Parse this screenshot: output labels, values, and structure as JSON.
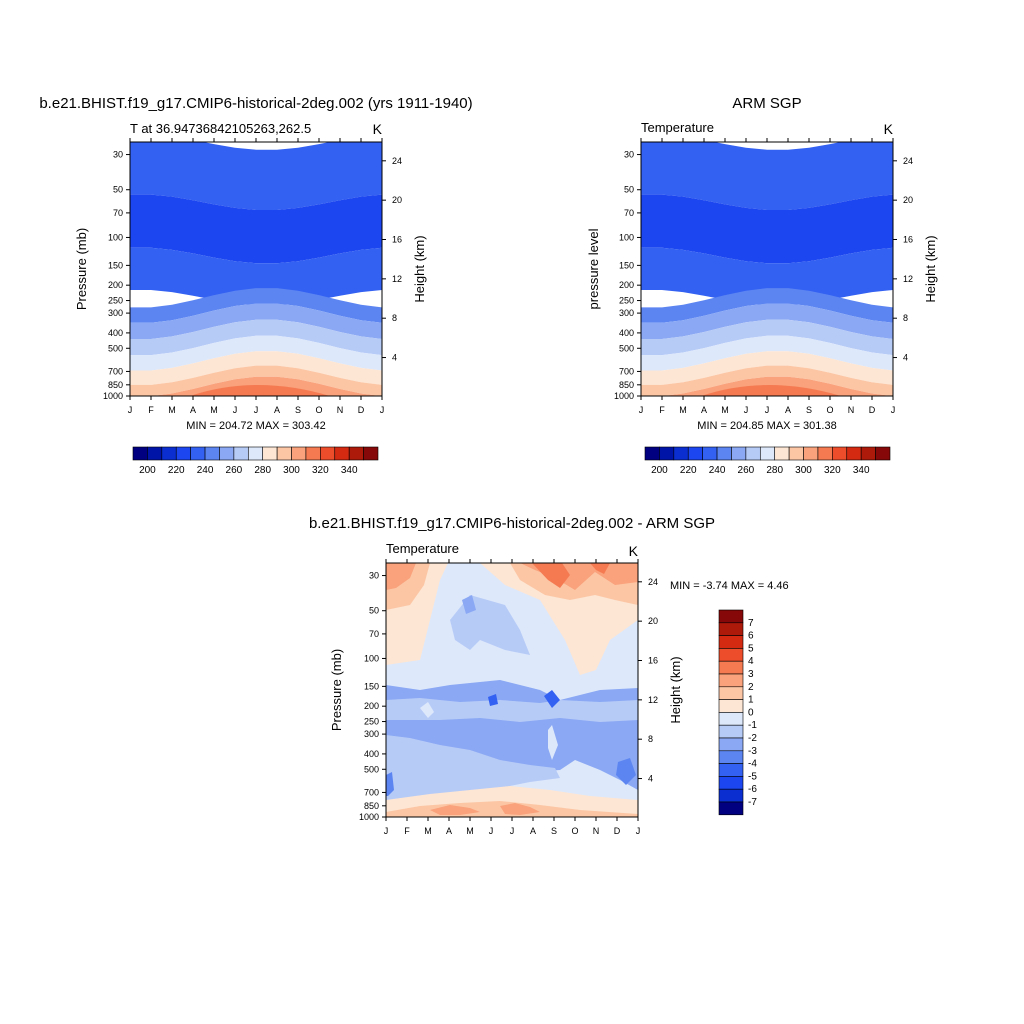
{
  "panels": {
    "p1": {
      "title": "b.e21.BHIST.f19_g17.CMIP6-historical-2deg.002 (yrs 1911-1940)",
      "left_label": "T at 36.94736842105263,262.5",
      "right_label": "K",
      "ylabel": "Pressure (mb)",
      "ylabel_right": "Height (km)",
      "minmax": "MIN = 204.72 MAX = 303.42"
    },
    "p2": {
      "title": "ARM SGP",
      "left_label": "Temperature",
      "right_label": "K",
      "ylabel": "pressure level",
      "ylabel_right": "Height (km)",
      "minmax": "MIN = 204.85 MAX = 301.38"
    },
    "p3": {
      "title": "b.e21.BHIST.f19_g17.CMIP6-historical-2deg.002 - ARM SGP",
      "left_label": "Temperature",
      "right_label": "K",
      "ylabel": "Pressure (mb)",
      "ylabel_right": "Height (km)",
      "minmax": "MIN =  -3.74 MAX =   4.46"
    }
  },
  "chart_data": [
    {
      "type": "heatmap",
      "title": "b.e21.BHIST.f19_g17.CMIP6-historical-2deg.002 (yrs 1911-1940)",
      "xlabel": "",
      "ylabel": "Pressure (mb)",
      "x_ticks": [
        "J",
        "F",
        "M",
        "A",
        "M",
        "J",
        "J",
        "A",
        "S",
        "O",
        "N",
        "D",
        "J"
      ],
      "y_ticks": [
        "30",
        "50",
        "70",
        "100",
        "150",
        "200",
        "250",
        "300",
        "400",
        "500",
        "700",
        "850",
        "1000"
      ],
      "y_ticks_right": [
        "24",
        "20",
        "16",
        "12",
        "8",
        "4"
      ],
      "ylim": [
        1000,
        25
      ],
      "y_scale": "log",
      "min": 204.72,
      "max": 303.42,
      "units": "K",
      "bands": [
        {
          "p_top": 25,
          "p_bot": 60,
          "level": 230
        },
        {
          "p_top": 60,
          "p_bot": 130,
          "level": 220
        },
        {
          "p_top": 130,
          "p_bot": 240,
          "level": 230
        },
        {
          "p_top": 240,
          "p_bot": 300,
          "level": 240
        },
        {
          "p_top": 300,
          "p_bot": 380,
          "level": 250
        },
        {
          "p_top": 380,
          "p_bot": 480,
          "level": 260
        },
        {
          "p_top": 480,
          "p_bot": 600,
          "level": 270
        },
        {
          "p_top": 600,
          "p_bot": 740,
          "level": 280
        },
        {
          "p_top": 740,
          "p_bot": 870,
          "level": 290
        },
        {
          "p_top": 870,
          "p_bot": 1000,
          "level": 300
        }
      ]
    },
    {
      "type": "heatmap",
      "title": "ARM SGP",
      "xlabel": "",
      "ylabel": "pressure level",
      "x_ticks": [
        "J",
        "F",
        "M",
        "A",
        "M",
        "J",
        "J",
        "A",
        "S",
        "O",
        "N",
        "D",
        "J"
      ],
      "y_ticks": [
        "30",
        "50",
        "70",
        "100",
        "150",
        "200",
        "250",
        "300",
        "400",
        "500",
        "700",
        "850",
        "1000"
      ],
      "y_ticks_right": [
        "24",
        "20",
        "16",
        "12",
        "8",
        "4"
      ],
      "ylim": [
        1000,
        25
      ],
      "y_scale": "log",
      "min": 204.85,
      "max": 301.38,
      "units": "K",
      "bands": [
        {
          "p_top": 25,
          "p_bot": 60,
          "level": 230
        },
        {
          "p_top": 60,
          "p_bot": 130,
          "level": 220
        },
        {
          "p_top": 130,
          "p_bot": 240,
          "level": 230
        },
        {
          "p_top": 240,
          "p_bot": 300,
          "level": 240
        },
        {
          "p_top": 300,
          "p_bot": 380,
          "level": 250
        },
        {
          "p_top": 380,
          "p_bot": 480,
          "level": 260
        },
        {
          "p_top": 480,
          "p_bot": 600,
          "level": 270
        },
        {
          "p_top": 600,
          "p_bot": 740,
          "level": 280
        },
        {
          "p_top": 740,
          "p_bot": 870,
          "level": 290
        },
        {
          "p_top": 870,
          "p_bot": 1000,
          "level": 300
        }
      ]
    },
    {
      "type": "heatmap",
      "title": "b.e21.BHIST.f19_g17.CMIP6-historical-2deg.002 - ARM SGP",
      "xlabel": "",
      "ylabel": "Pressure (mb)",
      "x_ticks": [
        "J",
        "F",
        "M",
        "A",
        "M",
        "J",
        "J",
        "A",
        "S",
        "O",
        "N",
        "D",
        "J"
      ],
      "y_ticks": [
        "30",
        "50",
        "70",
        "100",
        "150",
        "200",
        "250",
        "300",
        "400",
        "500",
        "700",
        "850",
        "1000"
      ],
      "y_ticks_right": [
        "24",
        "20",
        "16",
        "12",
        "8",
        "4"
      ],
      "ylim": [
        1000,
        25
      ],
      "y_scale": "log",
      "min": -3.74,
      "max": 4.46,
      "units": "K"
    }
  ],
  "colorbars": {
    "abs": {
      "levels": [
        200,
        210,
        220,
        230,
        240,
        250,
        260,
        270,
        280,
        290,
        300,
        310,
        320,
        330,
        340
      ],
      "labels": [
        "200",
        "220",
        "240",
        "260",
        "280",
        "300",
        "320",
        "340"
      ],
      "colors": [
        "#000080",
        "#0015a8",
        "#0a2ed0",
        "#1c46ef",
        "#3361f2",
        "#5c85f2",
        "#8aa8f4",
        "#b7cbf7",
        "#dde8fb",
        "#fde6d3",
        "#fcc6a5",
        "#f9a27b",
        "#f57a52",
        "#ee4d2b",
        "#d52a12",
        "#ad1a0a",
        "#860808"
      ]
    },
    "diff": {
      "labels": [
        "7",
        "6",
        "5",
        "4",
        "3",
        "2",
        "1",
        "0",
        "-1",
        "-2",
        "-3",
        "-4",
        "-5",
        "-6",
        "-7"
      ],
      "colors": [
        "#860808",
        "#ad1a0a",
        "#d52a12",
        "#ee4d2b",
        "#f57a52",
        "#f9a27b",
        "#fcc6a5",
        "#fde6d3",
        "#dde8fb",
        "#b7cbf7",
        "#8aa8f4",
        "#5c85f2",
        "#3361f2",
        "#1c46ef",
        "#0a2ed0",
        "#000080"
      ]
    }
  }
}
